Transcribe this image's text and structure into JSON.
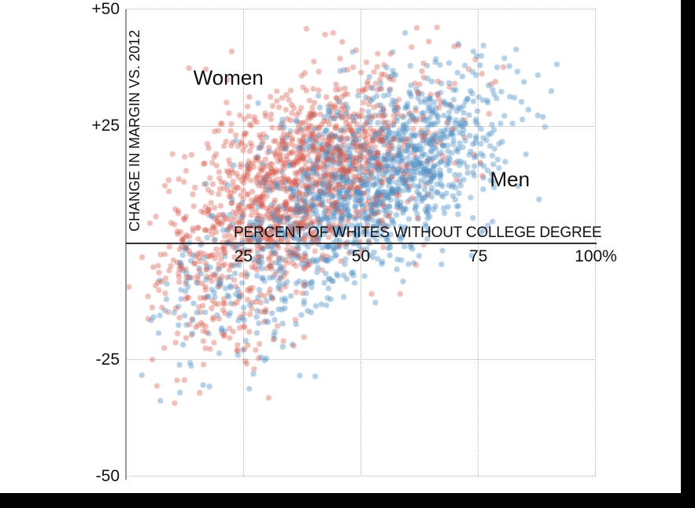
{
  "frame": {
    "right_bar_color": "#000000",
    "bottom_bar_color": "#000000",
    "background_color": "#ffffff"
  },
  "chart_data": {
    "type": "scatter",
    "title": "",
    "xlabel": "PERCENT OF WHITES WITHOUT COLLEGE DEGREE",
    "ylabel": "CHANGE IN MARGIN VS. 2012",
    "xlim": [
      0,
      100
    ],
    "ylim": [
      -50,
      50
    ],
    "x_ticks": [
      {
        "value": 25,
        "label": "25"
      },
      {
        "value": 50,
        "label": "50"
      },
      {
        "value": 75,
        "label": "75"
      },
      {
        "value": 100,
        "label": "100%"
      }
    ],
    "y_ticks": [
      {
        "value": 50,
        "label": "+50"
      },
      {
        "value": 25,
        "label": "+25"
      },
      {
        "value": -25,
        "label": "-25"
      },
      {
        "value": -50,
        "label": "-50"
      }
    ],
    "grid": "dotted",
    "grid_color": "#b3b3b3",
    "x_axis_color": "#333333",
    "y_axis_color": "#979797",
    "text_color": "#111111",
    "legend_position": "none",
    "annotations": [
      {
        "label": "Women",
        "x": 21.8,
        "y": 35.3
      },
      {
        "label": "Men",
        "x": 81.7,
        "y": 13.5
      }
    ],
    "point_radius": 3.6,
    "points_generated_from_distribution": true,
    "series": [
      {
        "name": "Women",
        "color": "#d5574a",
        "opacity": 0.38,
        "n": 1450,
        "seed": 7,
        "clusters": [
          {
            "weight": 0.87,
            "mean": [
              38.5,
              14.5
            ],
            "sd": [
              13,
              11
            ],
            "rho": 0.45,
            "x_range": [
              0.5,
              81
            ],
            "y_range": [
              -34,
              47
            ]
          },
          {
            "weight": 0.13,
            "mean": [
              21,
              -9
            ],
            "sd": [
              10,
              10
            ],
            "rho": 0.15,
            "x_range": [
              0.5,
              58
            ],
            "y_range": [
              -36,
              6
            ]
          }
        ]
      },
      {
        "name": "Men",
        "color": "#4e8fc4",
        "opacity": 0.42,
        "n": 1450,
        "seed": 13,
        "clusters": [
          {
            "weight": 0.87,
            "mean": [
              53,
              13.5
            ],
            "sd": [
              13.5,
              11
            ],
            "rho": 0.45,
            "x_range": [
              7,
              94
            ],
            "y_range": [
              -34,
              47
            ]
          },
          {
            "weight": 0.13,
            "mean": [
              25,
              -9
            ],
            "sd": [
              11,
              10
            ],
            "rho": 0.15,
            "x_range": [
              2,
              58
            ],
            "y_range": [
              -36,
              6
            ]
          }
        ]
      }
    ]
  }
}
